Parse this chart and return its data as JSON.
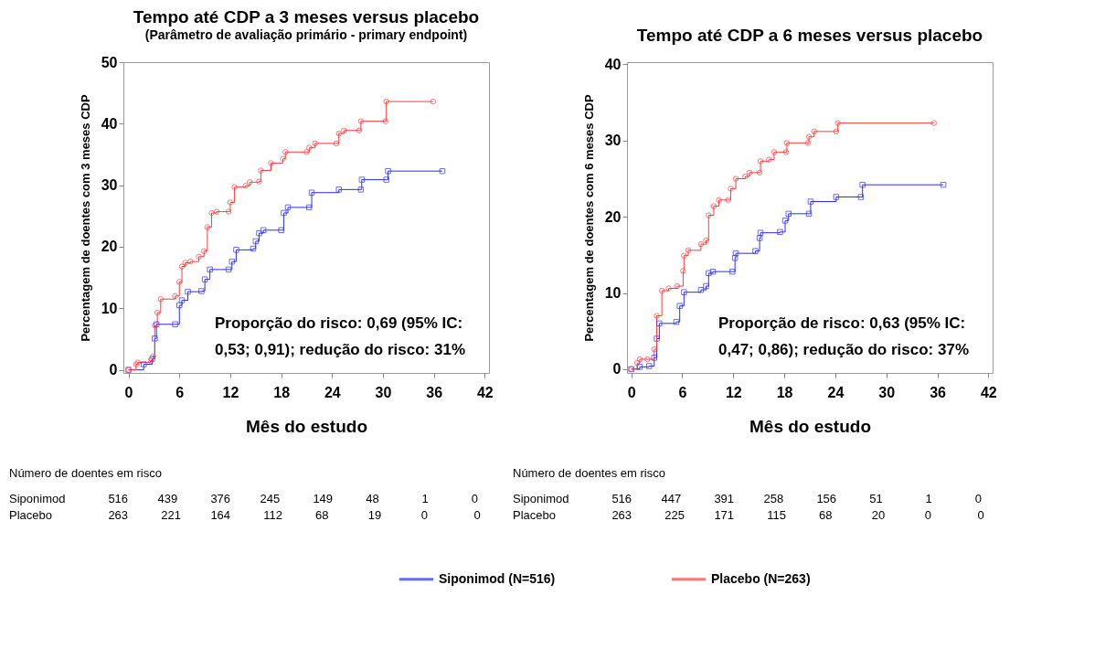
{
  "chart_data": [
    {
      "type": "step",
      "title": "Tempo até CDP a 3 meses versus placebo",
      "subtitle": "(Parâmetro de avaliação primário - primary endpoint)",
      "xlabel": "Mês do estudo",
      "ylabel": "Percentagem de doentes com 3 meses CDP",
      "xlim": [
        -0.6,
        42.5
      ],
      "ylim": [
        -0.5,
        50
      ],
      "xticks": [
        0,
        6,
        12,
        18,
        24,
        30,
        36,
        42
      ],
      "yticks": [
        0,
        10,
        20,
        30,
        40,
        50
      ],
      "legend": "bottom",
      "annotations": [
        "Proporção do risco: 0,69 (95% IC:",
        "0,53; 0,91); redução do risco: 31%",
        "Número de doentes em risco",
        "Siponimod 516 439 376 245 149 48 1 0",
        "Placebo 263 221 164 112 68 19 0 0"
      ],
      "series": [
        {
          "name": "Siponimod (N=516)",
          "color": "#2b2bff",
          "marker": "square",
          "x": [
            0,
            1.8,
            2.8,
            3.1,
            3.3,
            5.5,
            6.0,
            6.3,
            7.0,
            8.6,
            9.0,
            9.6,
            11.8,
            12.2,
            12.7,
            14.7,
            15.0,
            15.4,
            15.9,
            18.0,
            18.3,
            18.8,
            21.3,
            21.6,
            24.8,
            27.4,
            27.5,
            30.4,
            30.6,
            37.0
          ],
          "values": [
            0,
            0.9,
            1.8,
            5.1,
            7.4,
            7.4,
            10.5,
            11.3,
            12.7,
            12.8,
            14.7,
            16.3,
            16.3,
            17.6,
            19.5,
            19.7,
            20.9,
            22.2,
            22.7,
            22.7,
            25.5,
            26.4,
            26.4,
            28.8,
            29.3,
            29.3,
            30.9,
            30.9,
            32.3,
            32.3
          ]
        },
        {
          "name": "Placebo (N=263)",
          "color": "#ff3b3b",
          "marker": "circle",
          "x": [
            0,
            0.9,
            1.1,
            2.6,
            2.9,
            3.1,
            3.4,
            3.8,
            5.5,
            6.0,
            6.3,
            6.7,
            7.3,
            8.3,
            8.9,
            9.3,
            9.8,
            10.4,
            11.8,
            12.0,
            12.5,
            13.8,
            14.3,
            15.4,
            15.6,
            16.8,
            18.2,
            18.5,
            21.0,
            21.3,
            22.0,
            24.5,
            24.8,
            25.4,
            27.2,
            27.4,
            30.3,
            30.4,
            35.9
          ],
          "values": [
            0,
            0.9,
            1.2,
            1.5,
            2.2,
            7.2,
            9.3,
            11.5,
            12.0,
            14.3,
            16.8,
            17.4,
            17.6,
            18.4,
            19.3,
            23.2,
            25.5,
            25.7,
            25.7,
            27.2,
            29.7,
            29.9,
            30.5,
            30.6,
            32.4,
            33.6,
            34.3,
            35.4,
            35.4,
            36.1,
            36.8,
            36.8,
            38.4,
            38.9,
            38.9,
            40.4,
            40.4,
            43.6,
            43.6
          ]
        }
      ]
    },
    {
      "type": "step",
      "title": "Tempo até CDP a 6 meses versus placebo",
      "xlabel": "Mês do estudo",
      "ylabel": "Percentagem de doentes com 6 meses CDP",
      "xlim": [
        -0.5,
        42.5
      ],
      "ylim": [
        -0.5,
        40.3
      ],
      "xticks": [
        0,
        6,
        12,
        18,
        24,
        30,
        36,
        42
      ],
      "yticks": [
        0,
        10,
        20,
        30,
        40
      ],
      "legend": "bottom",
      "annotations": [
        "Proporção de risco: 0,63 (95% IC:",
        "0,47; 0,86); redução do risco: 37%",
        "Número de doentes em risco",
        "Siponimod 516 447 391 258 156 51 1 0",
        "Placebo 263 225 171 115 68 20 0 0"
      ],
      "series": [
        {
          "name": "Siponimod (N=516)",
          "color": "#2b2bff",
          "marker": "square",
          "x": [
            0,
            1.0,
            2.1,
            2.7,
            3.0,
            3.3,
            5.3,
            5.7,
            6.2,
            8.2,
            8.8,
            9.1,
            9.6,
            11.9,
            12.2,
            12.3,
            14.6,
            15.1,
            15.2,
            17.5,
            18.1,
            18.5,
            20.9,
            21.1,
            24.1,
            27.0,
            27.2,
            36.7
          ],
          "values": [
            0,
            0.3,
            0.4,
            1.5,
            4.0,
            6.0,
            6.2,
            8.3,
            10.1,
            10.4,
            10.9,
            12.6,
            12.8,
            12.8,
            14.6,
            15.2,
            15.5,
            17.2,
            17.9,
            18.0,
            19.5,
            20.4,
            20.4,
            22.0,
            22.6,
            22.6,
            24.2,
            24.2
          ]
        },
        {
          "name": "Placebo (N=263)",
          "color": "#ff3b3b",
          "marker": "circle",
          "x": [
            0,
            0.7,
            1.0,
            1.9,
            2.7,
            3.0,
            3.6,
            4.4,
            5.4,
            6.1,
            6.2,
            6.7,
            8.2,
            8.8,
            9.1,
            9.7,
            10.3,
            11.4,
            11.7,
            12.3,
            13.4,
            13.9,
            15.1,
            15.2,
            16.2,
            16.8,
            18.2,
            18.3,
            20.8,
            20.9,
            21.5,
            24.1,
            24.3,
            35.6
          ],
          "values": [
            0,
            0.8,
            1.3,
            1.3,
            2.6,
            7.0,
            10.3,
            10.6,
            10.9,
            12.9,
            14.9,
            15.6,
            16.4,
            16.9,
            20.2,
            21.4,
            22.2,
            22.2,
            23.7,
            25.0,
            25.3,
            25.8,
            25.8,
            27.3,
            27.5,
            28.5,
            28.5,
            29.7,
            29.7,
            30.5,
            31.2,
            31.2,
            32.3,
            32.3
          ]
        }
      ]
    }
  ]
}
